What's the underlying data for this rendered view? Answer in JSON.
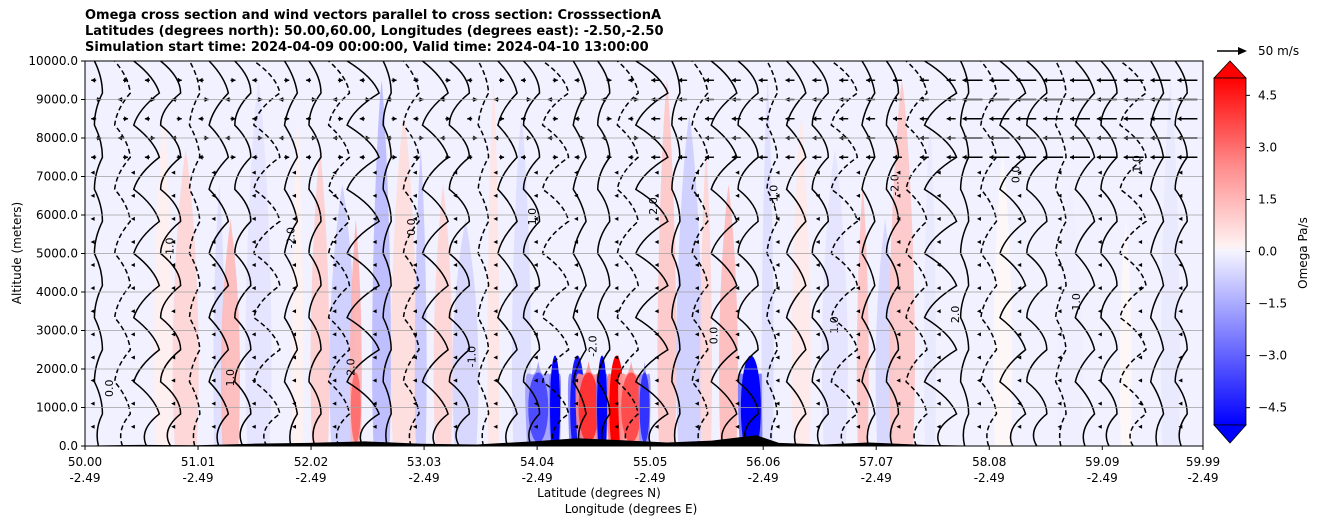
{
  "chart_data": {
    "type": "heatmap",
    "title_lines": [
      "Omega cross section and wind vectors parallel to cross section: CrosssectionA",
      "Latitudes (degrees north): 50.00,60.00, Longitudes (degrees east): -2.50,-2.50",
      "Simulation start time: 2024-04-09 00:00:00, Valid time: 2024-04-10 13:00:00"
    ],
    "ylabel": "Altitude (meters)",
    "xlabel_lines": [
      "Latitude (degrees N)",
      "Longitude (degrees E)"
    ],
    "ylim": [
      0,
      10000
    ],
    "xlim": [
      50.0,
      59.99
    ],
    "y_ticks": [
      "0.0",
      "1000.0",
      "2000.0",
      "3000.0",
      "4000.0",
      "5000.0",
      "6000.0",
      "7000.0",
      "8000.0",
      "9000.0",
      "10000.0"
    ],
    "y_tick_values": [
      0,
      1000,
      2000,
      3000,
      4000,
      5000,
      6000,
      7000,
      8000,
      9000,
      10000
    ],
    "x_ticks": [
      {
        "lat": "50.00",
        "lon": "-2.49"
      },
      {
        "lat": "51.01",
        "lon": "-2.49"
      },
      {
        "lat": "52.02",
        "lon": "-2.49"
      },
      {
        "lat": "53.03",
        "lon": "-2.49"
      },
      {
        "lat": "54.04",
        "lon": "-2.49"
      },
      {
        "lat": "55.05",
        "lon": "-2.49"
      },
      {
        "lat": "56.06",
        "lon": "-2.49"
      },
      {
        "lat": "57.07",
        "lon": "-2.49"
      },
      {
        "lat": "58.08",
        "lon": "-2.49"
      },
      {
        "lat": "59.09",
        "lon": "-2.49"
      },
      {
        "lat": "59.99",
        "lon": "-2.49"
      }
    ],
    "x_tick_values": [
      50.0,
      51.01,
      52.02,
      53.03,
      54.04,
      55.05,
      56.06,
      57.07,
      58.08,
      59.09,
      59.99
    ],
    "grid": "horizontal",
    "colorbar": {
      "label": "Omega Pa/s",
      "range": [
        -5.0,
        5.0
      ],
      "tick_labels": [
        "4.5",
        "3.0",
        "1.5",
        "0.0",
        "−1.5",
        "−3.0",
        "−4.5"
      ],
      "tick_values": [
        4.5,
        3.0,
        1.5,
        0.0,
        -1.5,
        -3.0,
        -4.5
      ],
      "levels": 20,
      "extend": "both",
      "low_color": "#0000ff",
      "high_color": "#ff0000"
    },
    "quiver_key": {
      "label": "50 m/s",
      "magnitude": 50
    },
    "contour_labels": [
      "0.0",
      "-1.0",
      "1.0",
      "-2.0",
      "2.0"
    ],
    "omega_columns": [
      {
        "lat": 50.3,
        "value": -0.5
      },
      {
        "lat": 50.7,
        "value": 0.6
      },
      {
        "lat": 50.9,
        "value": 1.5
      },
      {
        "lat": 51.2,
        "value": -1.2
      },
      {
        "lat": 51.3,
        "value": 2.5
      },
      {
        "lat": 51.55,
        "value": -1.0
      },
      {
        "lat": 51.9,
        "value": 0.5
      },
      {
        "lat": 52.1,
        "value": 1.8
      },
      {
        "lat": 52.3,
        "value": -1.8
      },
      {
        "lat": 52.42,
        "value": 2.8
      },
      {
        "lat": 52.65,
        "value": -2.5
      },
      {
        "lat": 52.85,
        "value": 1.2
      },
      {
        "lat": 53.0,
        "value": -2.0
      },
      {
        "lat": 53.2,
        "value": 1.5
      },
      {
        "lat": 53.4,
        "value": -1.5
      },
      {
        "lat": 53.65,
        "value": 1.0
      },
      {
        "lat": 53.9,
        "value": -1.2
      },
      {
        "lat": 54.05,
        "value": -3.5
      },
      {
        "lat": 54.2,
        "value": -5.0
      },
      {
        "lat": 54.4,
        "value": -4.5
      },
      {
        "lat": 54.5,
        "value": 4.0
      },
      {
        "lat": 54.62,
        "value": -5.0
      },
      {
        "lat": 54.75,
        "value": 5.0
      },
      {
        "lat": 54.88,
        "value": 3.5
      },
      {
        "lat": 55.0,
        "value": -4.0
      },
      {
        "lat": 55.2,
        "value": 2.0
      },
      {
        "lat": 55.4,
        "value": -1.8
      },
      {
        "lat": 55.55,
        "value": 1.5
      },
      {
        "lat": 55.75,
        "value": 2.5
      },
      {
        "lat": 55.95,
        "value": -5.0
      },
      {
        "lat": 56.1,
        "value": -1.2
      },
      {
        "lat": 56.4,
        "value": 0.8
      },
      {
        "lat": 56.7,
        "value": -1.0
      },
      {
        "lat": 56.95,
        "value": 2.2
      },
      {
        "lat": 57.15,
        "value": -1.5
      },
      {
        "lat": 57.3,
        "value": 2.0
      },
      {
        "lat": 57.55,
        "value": -0.8
      },
      {
        "lat": 58.2,
        "value": 0.3
      },
      {
        "lat": 58.8,
        "value": -0.6
      },
      {
        "lat": 59.3,
        "value": 0.3
      },
      {
        "lat": 59.7,
        "value": -0.8
      }
    ]
  }
}
